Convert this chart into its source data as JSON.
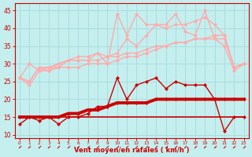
{
  "xlabel": "Vent moyen/en rafales ( km/h )",
  "bg_color": "#c5eeee",
  "grid_color": "#aadddd",
  "x": [
    0,
    1,
    2,
    3,
    4,
    5,
    6,
    7,
    8,
    9,
    10,
    11,
    12,
    13,
    14,
    15,
    16,
    17,
    18,
    19,
    20,
    21,
    22,
    23
  ],
  "line_flat": [
    15,
    15,
    15,
    15,
    15,
    15,
    15,
    15,
    15,
    15,
    15,
    15,
    15,
    15,
    15,
    15,
    15,
    15,
    15,
    15,
    15,
    15,
    15,
    15
  ],
  "line_thick": [
    15,
    15,
    15,
    15,
    15,
    16,
    16,
    17,
    17,
    18,
    19,
    19,
    19,
    19,
    20,
    20,
    20,
    20,
    20,
    20,
    20,
    20,
    20,
    20
  ],
  "line_spiky": [
    13,
    15,
    14,
    15,
    13,
    15,
    15,
    16,
    18,
    18,
    26,
    20,
    24,
    25,
    26,
    23,
    25,
    24,
    24,
    24,
    20,
    11,
    15,
    15
  ],
  "line_mid1": [
    26,
    24,
    28,
    28,
    29,
    29,
    29,
    30,
    30,
    30,
    31,
    32,
    32,
    33,
    34,
    35,
    36,
    36,
    37,
    37,
    38,
    38,
    29,
    30
  ],
  "line_mid2": [
    26,
    30,
    28,
    29,
    29,
    31,
    31,
    31,
    31,
    32,
    32,
    33,
    33,
    34,
    35,
    35,
    36,
    36,
    37,
    37,
    37,
    37,
    29,
    30
  ],
  "line_upper": [
    26,
    25,
    29,
    29,
    30,
    31,
    31,
    31,
    33,
    30,
    44,
    38,
    44,
    41,
    41,
    41,
    44,
    39,
    38,
    45,
    37,
    35,
    28,
    30
  ],
  "line_spike2": [
    26,
    25,
    29,
    28,
    30,
    31,
    32,
    32,
    33,
    32,
    33,
    37,
    35,
    38,
    41,
    40,
    41,
    41,
    42,
    43,
    41,
    38,
    29,
    30
  ],
  "color_dark": "#cc0000",
  "color_med": "#ee6666",
  "color_light": "#ffaaaa",
  "ylim": [
    9,
    47
  ],
  "yticks": [
    10,
    15,
    20,
    25,
    30,
    35,
    40,
    45
  ]
}
